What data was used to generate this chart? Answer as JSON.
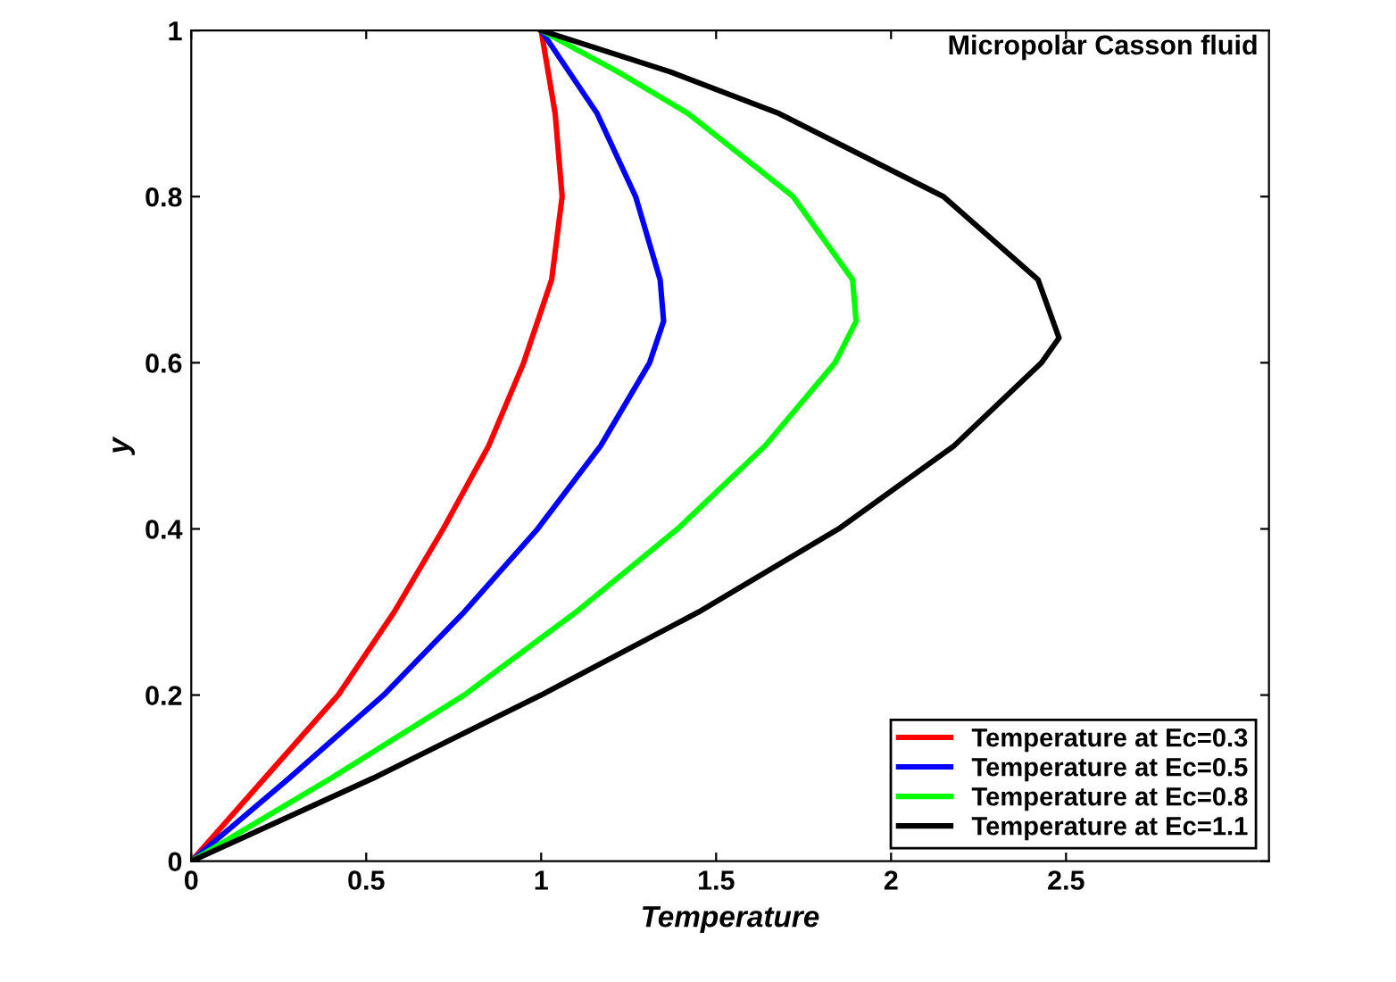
{
  "chart_data": {
    "type": "line",
    "xlabel": "Temperature",
    "ylabel": "y",
    "annotations": [
      "Micropolar Casson fluid"
    ],
    "xlim": [
      0,
      3.08
    ],
    "ylim": [
      0,
      1
    ],
    "xticks": [
      0,
      0.5,
      1,
      1.5,
      2,
      2.5
    ],
    "yticks": [
      0,
      0.2,
      0.4,
      0.6,
      0.8,
      1
    ],
    "grid": false,
    "legend": "bottom right",
    "marker": "none",
    "line_style": "solid",
    "series": [
      {
        "name": "Temperature at Ec=0.3",
        "color": "#ff0000",
        "x": [
          0,
          0.21,
          0.42,
          0.58,
          0.72,
          0.85,
          0.95,
          1.03,
          1.06,
          1.04,
          1.02,
          1.0
        ],
        "values": [
          0,
          0.1,
          0.2,
          0.3,
          0.4,
          0.5,
          0.6,
          0.7,
          0.8,
          0.9,
          0.95,
          1
        ]
      },
      {
        "name": "Temperature at Ec=0.5",
        "color": "#0000ff",
        "x": [
          0,
          0.28,
          0.55,
          0.78,
          0.99,
          1.17,
          1.31,
          1.35,
          1.34,
          1.27,
          1.16,
          1.08,
          1.0
        ],
        "values": [
          0,
          0.1,
          0.2,
          0.3,
          0.4,
          0.5,
          0.6,
          0.65,
          0.7,
          0.8,
          0.9,
          0.95,
          1
        ]
      },
      {
        "name": "Temperature at Ec=0.8",
        "color": "#00ff00",
        "x": [
          0,
          0.4,
          0.78,
          1.1,
          1.39,
          1.64,
          1.84,
          1.9,
          1.89,
          1.72,
          1.42,
          1.22,
          1.0
        ],
        "values": [
          0,
          0.1,
          0.2,
          0.3,
          0.4,
          0.5,
          0.6,
          0.65,
          0.7,
          0.8,
          0.9,
          0.95,
          1
        ]
      },
      {
        "name": "Temperature at Ec=1.1",
        "color": "#000000",
        "x": [
          0,
          0.52,
          1.0,
          1.45,
          1.85,
          2.18,
          2.43,
          2.48,
          2.42,
          2.15,
          1.68,
          1.37,
          1.0
        ],
        "values": [
          0,
          0.1,
          0.2,
          0.3,
          0.4,
          0.5,
          0.6,
          0.63,
          0.7,
          0.8,
          0.9,
          0.95,
          1
        ]
      }
    ]
  }
}
